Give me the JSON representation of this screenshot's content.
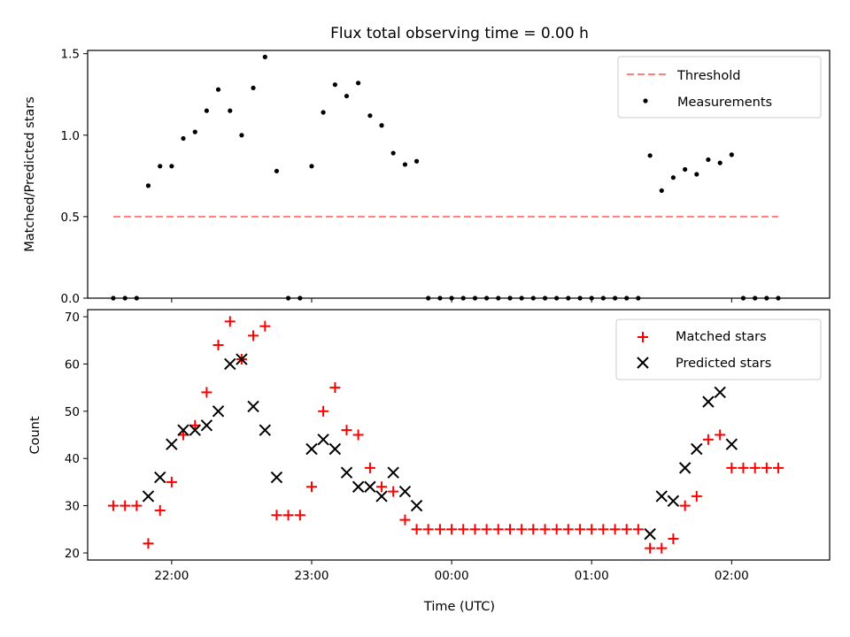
{
  "chart_data": [
    {
      "type": "scatter",
      "title": "Flux total observing time = 0.00 h",
      "xlabel": "",
      "ylabel": "Matched/Predicted stars",
      "ylim": [
        0,
        1.52
      ],
      "yticks": [
        0.0,
        0.5,
        1.0,
        1.5
      ],
      "ytick_labels": [
        "0.0",
        "0.5",
        "1.0",
        "1.5"
      ],
      "legend_position": "top-right",
      "threshold": {
        "name": "Threshold",
        "value": 0.5,
        "color": "#ff7f7f",
        "x_start": 21.583,
        "x_end": 2.333
      },
      "series": [
        {
          "name": "Measurements",
          "color": "#000000",
          "marker": "dot",
          "x": [
            21.583,
            21.667,
            21.75,
            21.833,
            21.917,
            22.0,
            22.083,
            22.167,
            22.25,
            22.333,
            22.417,
            22.5,
            22.583,
            22.667,
            22.75,
            22.833,
            22.917,
            23.0,
            23.083,
            23.167,
            23.25,
            23.333,
            23.417,
            23.5,
            23.583,
            23.667,
            23.75,
            23.833,
            23.917,
            0.0,
            0.083,
            0.167,
            0.25,
            0.333,
            0.417,
            0.5,
            0.583,
            0.667,
            0.75,
            0.833,
            0.917,
            1.0,
            1.083,
            1.167,
            1.25,
            1.333,
            1.417,
            1.5,
            1.583,
            1.667,
            1.75,
            1.833,
            1.917,
            2.0,
            2.083,
            2.167,
            2.25,
            2.333
          ],
          "y": [
            0.0,
            0.0,
            0.0,
            0.69,
            0.81,
            0.81,
            0.98,
            1.02,
            1.15,
            1.28,
            1.15,
            1.0,
            1.29,
            1.48,
            0.78,
            0.0,
            0.0,
            0.81,
            1.14,
            1.31,
            1.24,
            1.32,
            1.12,
            1.06,
            0.89,
            0.82,
            0.84,
            0.0,
            0.0,
            0.0,
            0.0,
            0.0,
            0.0,
            0.0,
            0.0,
            0.0,
            0.0,
            0.0,
            0.0,
            0.0,
            0.0,
            0.0,
            0.0,
            0.0,
            0.0,
            0.0,
            0.875,
            0.66,
            0.74,
            0.79,
            0.76,
            0.85,
            0.83,
            0.88,
            0.0,
            0.0,
            0.0,
            0.0
          ]
        }
      ]
    },
    {
      "type": "scatter",
      "title": "",
      "xlabel": "Time (UTC)",
      "ylabel": "Count",
      "ylim": [
        18.5,
        71.5
      ],
      "yticks": [
        20,
        30,
        40,
        50,
        60,
        70
      ],
      "ytick_labels": [
        "20",
        "30",
        "40",
        "50",
        "60",
        "70"
      ],
      "xlim": [
        21.4,
        2.7
      ],
      "xticks": [
        22.0,
        23.0,
        0.0,
        1.0,
        2.0
      ],
      "xtick_labels": [
        "22:00",
        "23:00",
        "00:00",
        "01:00",
        "02:00"
      ],
      "legend_position": "top-right",
      "series": [
        {
          "name": "Matched stars",
          "color": "#ff0000",
          "marker": "plus",
          "x": [
            21.583,
            21.667,
            21.75,
            21.833,
            21.917,
            22.0,
            22.083,
            22.167,
            22.25,
            22.333,
            22.417,
            22.5,
            22.583,
            22.667,
            22.75,
            22.833,
            22.917,
            23.0,
            23.083,
            23.167,
            23.25,
            23.333,
            23.417,
            23.5,
            23.583,
            23.667,
            23.75,
            23.833,
            23.917,
            0.0,
            0.083,
            0.167,
            0.25,
            0.333,
            0.417,
            0.5,
            0.583,
            0.667,
            0.75,
            0.833,
            0.917,
            1.0,
            1.083,
            1.167,
            1.25,
            1.333,
            1.417,
            1.5,
            1.583,
            1.667,
            1.75,
            1.833,
            1.917,
            2.0,
            2.083,
            2.167,
            2.25,
            2.333
          ],
          "y": [
            30,
            30,
            30,
            22,
            29,
            35,
            45,
            47,
            54,
            64,
            69,
            61,
            66,
            68,
            28,
            28,
            28,
            34,
            50,
            55,
            46,
            45,
            38,
            34,
            33,
            27,
            25,
            25,
            25,
            25,
            25,
            25,
            25,
            25,
            25,
            25,
            25,
            25,
            25,
            25,
            25,
            25,
            25,
            25,
            25,
            25,
            21,
            21,
            23,
            30,
            32,
            44,
            45,
            38,
            38,
            38,
            38,
            38
          ]
        },
        {
          "name": "Predicted stars",
          "color": "#000000",
          "marker": "x",
          "x": [
            21.833,
            21.917,
            22.0,
            22.083,
            22.167,
            22.25,
            22.333,
            22.417,
            22.5,
            22.583,
            22.667,
            22.75,
            23.0,
            23.083,
            23.167,
            23.25,
            23.333,
            23.417,
            23.5,
            23.583,
            23.667,
            23.75,
            1.417,
            1.5,
            1.583,
            1.667,
            1.75,
            1.833,
            1.917,
            2.0
          ],
          "y": [
            32,
            36,
            43,
            46,
            46,
            47,
            50,
            60,
            61,
            51,
            46,
            36,
            42,
            44,
            42,
            37,
            34,
            34,
            32,
            37,
            33,
            30,
            24,
            32,
            31,
            38,
            42,
            52,
            54,
            43
          ]
        }
      ]
    }
  ]
}
